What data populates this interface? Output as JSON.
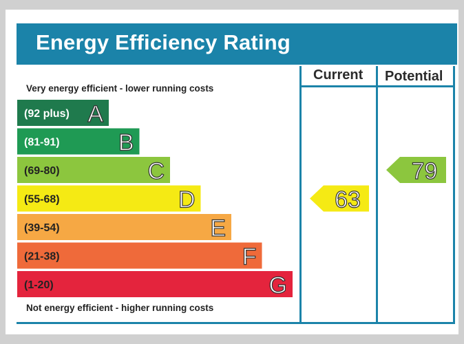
{
  "title": "Energy Efficiency Rating",
  "columns": {
    "current": "Current",
    "potential": "Potential"
  },
  "captions": {
    "top": "Very energy efficient - lower running costs",
    "bottom": "Not energy efficient - higher running costs"
  },
  "chart_data": {
    "type": "bar",
    "categories": [
      "A",
      "B",
      "C",
      "D",
      "E",
      "F",
      "G"
    ],
    "bands": [
      {
        "letter": "A",
        "range": "(92 plus)",
        "color": "#1f7a4d",
        "text_color": "#ffffff"
      },
      {
        "letter": "B",
        "range": "(81-91)",
        "color": "#1f9a54",
        "text_color": "#ffffff"
      },
      {
        "letter": "C",
        "range": "(69-80)",
        "color": "#8cc63e",
        "text_color": "#222222"
      },
      {
        "letter": "D",
        "range": "(55-68)",
        "color": "#f5ea14",
        "text_color": "#222222"
      },
      {
        "letter": "E",
        "range": "(39-54)",
        "color": "#f6a844",
        "text_color": "#222222"
      },
      {
        "letter": "F",
        "range": "(21-38)",
        "color": "#ef6a3a",
        "text_color": "#222222"
      },
      {
        "letter": "G",
        "range": "(1-20)",
        "color": "#e4243d",
        "text_color": "#222222"
      }
    ],
    "ratings": {
      "current": {
        "value": 63,
        "band": "D",
        "color": "#f5ea14"
      },
      "potential": {
        "value": 79,
        "band": "C",
        "color": "#8cc63e"
      }
    }
  }
}
